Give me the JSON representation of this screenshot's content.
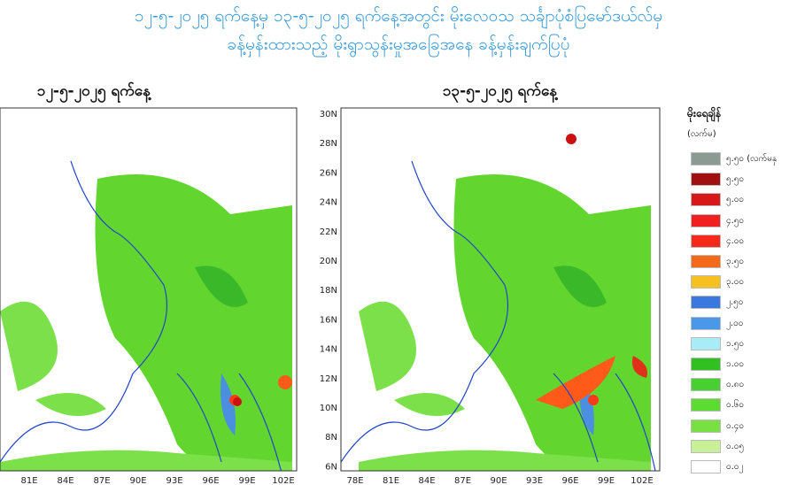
{
  "header": {
    "title_line_1": "၁၂-၅-၂၀၂၅ ရက်နေ့မှ ၁၃-၅-၂၀၂၅ ရက်နေ့အတွင်း မိုးလေဝသ သင်္ချာပုံစံပြမော်ဒယ်လ်မှ",
    "title_line_2": "ခန့်မှန်းထားသည့် မိုးရွာသွန်းမှုအခြေအနေ ခန့်မှန်းချက်ပြပုံ"
  },
  "panels": [
    {
      "title": "၁၂-၅-၂၀၂၅ ရက်နေ့",
      "x_labels": [
        "81E",
        "84E",
        "87E",
        "90E",
        "93E",
        "96E",
        "99E",
        "102E"
      ],
      "y_labels": []
    },
    {
      "title": "၁၃-၅-၂၀၂၅ ရက်နေ့",
      "x_labels": [
        "78E",
        "81E",
        "84E",
        "87E",
        "90E",
        "93E",
        "96E",
        "99E",
        "102E"
      ],
      "y_labels": [
        "30N",
        "28N",
        "26N",
        "24N",
        "22N",
        "20N",
        "18N",
        "16N",
        "14N",
        "12N",
        "10N",
        "8N",
        "6N"
      ]
    }
  ],
  "legend": {
    "title": "မိုးရေချိန်",
    "unit": "(လက်မ)",
    "items": [
      {
        "label": "၅.၅၀ (လက်မနှ",
        "color": "#8c9a94"
      },
      {
        "label": "၅.၅၀",
        "color": "#a01010"
      },
      {
        "label": "၅.၀၀",
        "color": "#d81818"
      },
      {
        "label": "၄.၅၀",
        "color": "#f02020"
      },
      {
        "label": "၄.၀၀",
        "color": "#f52a1a"
      },
      {
        "label": "၃.၅၀",
        "color": "#f56a1a"
      },
      {
        "label": "၃.၀၀",
        "color": "#f5c020"
      },
      {
        "label": "၂.၅၀",
        "color": "#3a78e0"
      },
      {
        "label": "၂.၀၀",
        "color": "#4a98ea"
      },
      {
        "label": "၁.၅၀",
        "color": "#a8ecf8"
      },
      {
        "label": "၁.၀၀",
        "color": "#30c020"
      },
      {
        "label": "၀.၈၀",
        "color": "#48d030"
      },
      {
        "label": "၀.၆၀",
        "color": "#5cdc30"
      },
      {
        "label": "၀.၄၀",
        "color": "#78e040"
      },
      {
        "label": "၀.၀၅",
        "color": "#c8f098"
      },
      {
        "label": "၀.၀၂",
        "color": "#ffffff"
      }
    ]
  }
}
